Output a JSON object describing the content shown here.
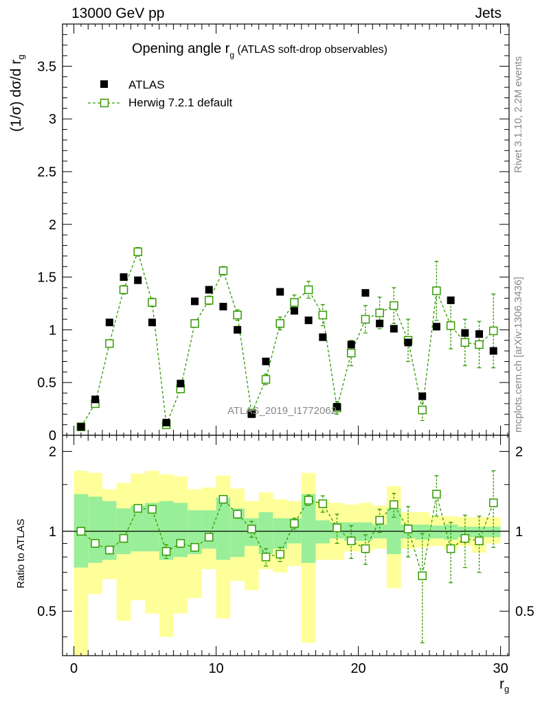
{
  "header": {
    "left": "13000 GeV pp",
    "right": "Jets"
  },
  "side_labels": {
    "rivet": "Rivet 3.1.10,  2.2M events",
    "mcplots": "mcplots.cern.ch [arXiv:1306.3436]"
  },
  "chart_data": {
    "type": "scatter",
    "title_main": "Opening angle r",
    "title_sub": "g",
    "title_rest": " (ATLAS soft-drop observables)",
    "watermark": "ATLAS_2019_I1772062",
    "ylabel_main": "(1/σ) dσ/d r",
    "ylabel_sub": "g",
    "ratio_ylabel": "Ratio to ATLAS",
    "xlabel_main": "r",
    "xlabel_sub": "g",
    "xlim": [
      -0.8,
      30.6
    ],
    "ylim": [
      0,
      3.9
    ],
    "ratio_ylim": [
      0.34,
      2.3
    ],
    "xticks": [
      "0",
      "10",
      "20",
      "30"
    ],
    "yticks": [
      "0",
      "0.5",
      "1",
      "1.5",
      "2",
      "2.5",
      "3",
      "3.5"
    ],
    "ratio_yticks": [
      "0.5",
      "1",
      "2"
    ],
    "legend": [
      "ATLAS",
      "Herwig 7.2.1 default"
    ],
    "colors": {
      "data": "#000000",
      "mc": "#339900",
      "band_inner": "#99ee99",
      "band_outer": "#ffff99"
    },
    "x": [
      0.5,
      1.5,
      2.5,
      3.5,
      4.5,
      5.5,
      6.5,
      7.5,
      8.5,
      9.5,
      10.5,
      11.5,
      12.5,
      13.5,
      14.5,
      15.5,
      16.5,
      17.5,
      18.5,
      19.5,
      20.5,
      21.5,
      22.5,
      23.5,
      24.5,
      25.5,
      26.5,
      27.5,
      28.5,
      29.5
    ],
    "series": [
      {
        "name": "ATLAS",
        "values": [
          0.08,
          0.34,
          1.07,
          1.5,
          1.47,
          1.07,
          0.12,
          0.49,
          1.27,
          1.38,
          1.22,
          1.0,
          0.2,
          0.7,
          1.36,
          1.18,
          1.09,
          0.93,
          0.27,
          0.86,
          1.35,
          1.06,
          1.01,
          0.88,
          0.37,
          1.03,
          1.28,
          0.97,
          0.96,
          0.8
        ]
      },
      {
        "name": "Herwig 7.2.1 default",
        "values": [
          0.08,
          0.3,
          0.87,
          1.38,
          1.74,
          1.26,
          0.1,
          0.44,
          1.06,
          1.28,
          1.56,
          1.14,
          0.21,
          0.53,
          1.06,
          1.26,
          1.38,
          1.14,
          0.26,
          0.78,
          1.1,
          1.16,
          1.23,
          0.9,
          0.24,
          1.37,
          1.04,
          0.88,
          0.86,
          0.99
        ],
        "errors": [
          0.01,
          0.02,
          0.03,
          0.04,
          0.04,
          0.04,
          0.02,
          0.03,
          0.03,
          0.04,
          0.04,
          0.05,
          0.02,
          0.05,
          0.06,
          0.07,
          0.08,
          0.1,
          0.06,
          0.12,
          0.13,
          0.15,
          0.17,
          0.2,
          0.1,
          0.28,
          0.22,
          0.22,
          0.22,
          0.35
        ]
      }
    ],
    "ratio": {
      "values": [
        1.0,
        0.9,
        0.85,
        0.94,
        1.22,
        1.21,
        0.84,
        0.9,
        0.87,
        0.95,
        1.32,
        1.16,
        1.02,
        0.8,
        0.82,
        1.07,
        1.31,
        1.27,
        1.03,
        0.92,
        0.86,
        1.1,
        1.26,
        1.02,
        0.68,
        1.38,
        0.86,
        0.94,
        0.92,
        1.28
      ],
      "errors": [
        0.03,
        0.03,
        0.02,
        0.02,
        0.03,
        0.03,
        0.05,
        0.03,
        0.02,
        0.03,
        0.03,
        0.04,
        0.07,
        0.06,
        0.05,
        0.05,
        0.06,
        0.09,
        0.13,
        0.13,
        0.11,
        0.11,
        0.13,
        0.22,
        0.3,
        0.24,
        0.22,
        0.21,
        0.22,
        0.41
      ],
      "band_inner_lo": [
        0.73,
        0.76,
        0.78,
        0.82,
        0.84,
        0.84,
        0.78,
        0.8,
        0.82,
        0.86,
        0.78,
        0.8,
        0.88,
        0.82,
        0.86,
        0.9,
        0.76,
        0.9,
        0.94,
        0.92,
        0.92,
        0.94,
        0.82,
        0.94,
        0.93,
        0.94,
        0.93,
        0.95,
        0.95,
        0.95
      ],
      "band_inner_hi": [
        1.38,
        1.35,
        1.3,
        1.22,
        1.25,
        1.28,
        1.3,
        1.28,
        1.2,
        1.2,
        1.34,
        1.22,
        1.12,
        1.18,
        1.12,
        1.12,
        1.38,
        1.1,
        1.08,
        1.08,
        1.08,
        1.06,
        1.22,
        1.06,
        1.06,
        1.05,
        1.06,
        1.04,
        1.04,
        1.04
      ],
      "band_outer_lo": [
        0.34,
        0.58,
        0.66,
        0.46,
        0.55,
        0.49,
        0.4,
        0.49,
        0.56,
        0.72,
        0.47,
        0.65,
        0.6,
        0.72,
        0.7,
        0.74,
        0.38,
        0.78,
        0.78,
        0.84,
        0.84,
        0.86,
        0.61,
        0.86,
        0.87,
        0.88,
        0.86,
        0.88,
        0.83,
        0.9
      ],
      "band_outer_hi": [
        1.69,
        1.66,
        1.44,
        1.52,
        1.65,
        1.69,
        1.64,
        1.61,
        1.44,
        1.46,
        1.62,
        1.45,
        1.3,
        1.4,
        1.32,
        1.3,
        1.66,
        1.3,
        1.28,
        1.26,
        1.28,
        1.25,
        1.48,
        1.18,
        1.18,
        1.14,
        1.14,
        1.13,
        1.13,
        1.13
      ]
    }
  }
}
